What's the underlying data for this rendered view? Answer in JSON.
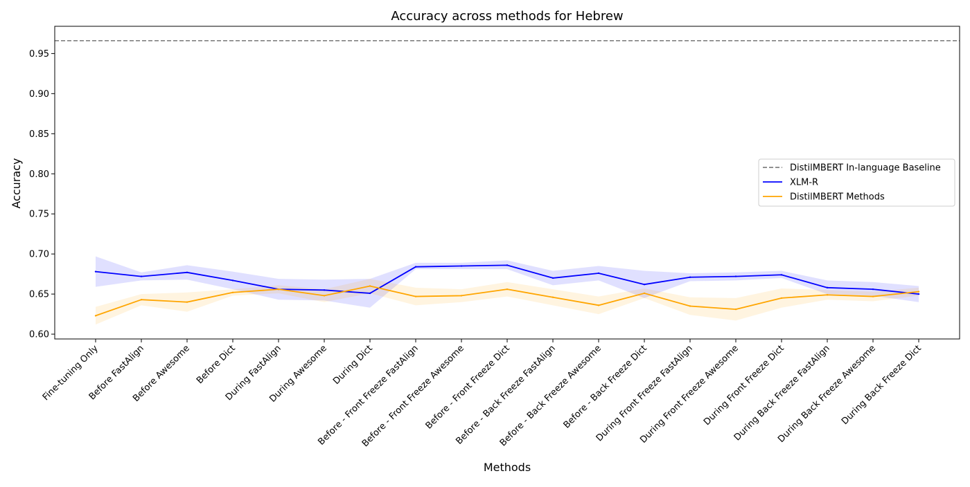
{
  "chart_data": {
    "type": "line",
    "title": "Accuracy across methods for Hebrew",
    "xlabel": "Methods",
    "ylabel": "Accuracy",
    "ylim": [
      0.594,
      0.984
    ],
    "yticks": [
      "0.60",
      "0.65",
      "0.70",
      "0.75",
      "0.80",
      "0.85",
      "0.90",
      "0.95"
    ],
    "ytick_values": [
      0.6,
      0.65,
      0.7,
      0.75,
      0.8,
      0.85,
      0.9,
      0.95
    ],
    "grid": false,
    "legend_position": "center-right",
    "categories": [
      "Fine-tuning Only",
      "Before FastAlign",
      "Before Awesome",
      "Before Dict",
      "During FastAlign",
      "During Awesome",
      "During Dict",
      "Before - Front Freeze FastAlign",
      "Before - Front Freeze Awesome",
      "Before - Front Freeze Dict",
      "Before - Back Freeze FastAlign",
      "Before - Back Freeze Awesome",
      "Before - Back Freeze Dict",
      "During Front Freeze FastAlign",
      "During Front Freeze Awesome",
      "During Front Freeze Dict",
      "During Back Freeze FastAlign",
      "During Back Freeze Awesome",
      "During Back Freeze Dict"
    ],
    "baseline": {
      "name": "DistilMBERT In-language Baseline",
      "value": 0.966,
      "color": "#808080",
      "style": "dashed"
    },
    "series": [
      {
        "name": "XLM-R",
        "color": "#0000ff",
        "band_color": "#0000ff",
        "values": [
          0.678,
          0.672,
          0.677,
          0.667,
          0.656,
          0.655,
          0.651,
          0.684,
          0.685,
          0.686,
          0.67,
          0.676,
          0.662,
          0.671,
          0.672,
          0.674,
          0.658,
          0.656,
          0.65
        ],
        "lower": [
          0.659,
          0.667,
          0.668,
          0.656,
          0.643,
          0.642,
          0.633,
          0.681,
          0.681,
          0.681,
          0.661,
          0.667,
          0.645,
          0.666,
          0.667,
          0.67,
          0.65,
          0.648,
          0.64
        ],
        "upper": [
          0.697,
          0.677,
          0.686,
          0.678,
          0.669,
          0.668,
          0.669,
          0.689,
          0.689,
          0.692,
          0.679,
          0.685,
          0.679,
          0.676,
          0.677,
          0.679,
          0.667,
          0.665,
          0.66
        ]
      },
      {
        "name": "DistilMBERT Methods",
        "color": "#ffa500",
        "band_color": "#ffa500",
        "values": [
          0.623,
          0.643,
          0.64,
          0.652,
          0.656,
          0.648,
          0.66,
          0.647,
          0.648,
          0.656,
          0.646,
          0.636,
          0.651,
          0.635,
          0.631,
          0.645,
          0.649,
          0.647,
          0.653
        ],
        "lower": [
          0.612,
          0.636,
          0.628,
          0.648,
          0.651,
          0.64,
          0.651,
          0.636,
          0.64,
          0.647,
          0.636,
          0.625,
          0.645,
          0.624,
          0.617,
          0.633,
          0.643,
          0.641,
          0.648
        ],
        "upper": [
          0.634,
          0.65,
          0.652,
          0.656,
          0.661,
          0.656,
          0.669,
          0.658,
          0.656,
          0.665,
          0.656,
          0.647,
          0.657,
          0.646,
          0.645,
          0.657,
          0.655,
          0.653,
          0.658
        ]
      }
    ]
  }
}
